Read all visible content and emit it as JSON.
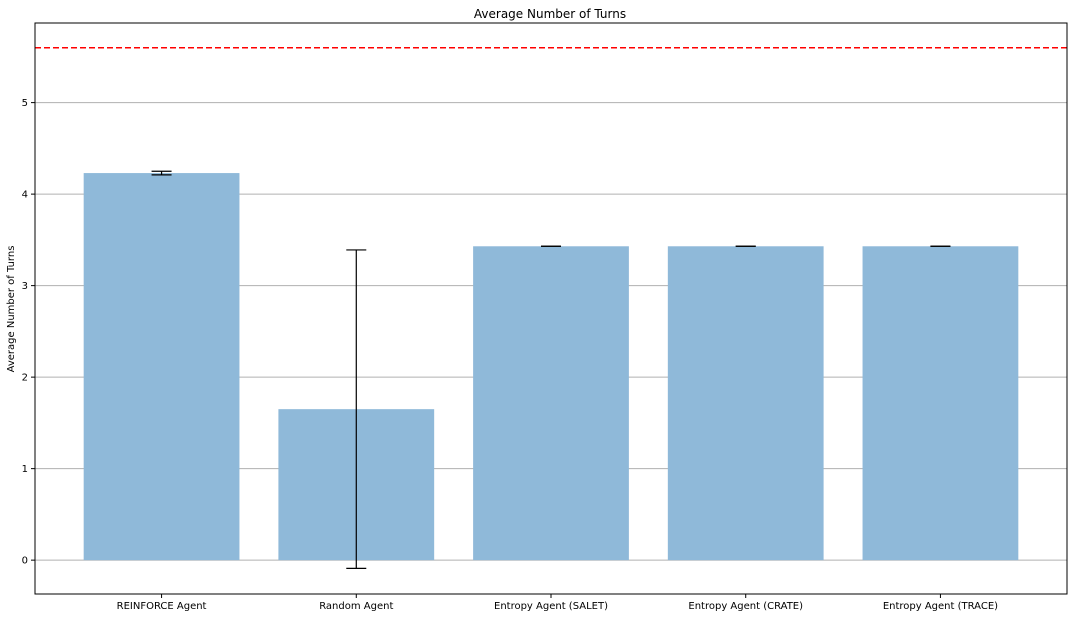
{
  "chart_data": {
    "type": "bar",
    "title": "Average Number of Turns",
    "xlabel": "",
    "ylabel": "Average Number of Turns",
    "categories": [
      "REINFORCE Agent",
      "Random Agent",
      "Entropy Agent (SALET)",
      "Entropy Agent (CRATE)",
      "Entropy Agent (TRACE)"
    ],
    "values": [
      4.23,
      1.65,
      3.43,
      3.43,
      3.43
    ],
    "errors": [
      0.02,
      1.74,
      0.0,
      0.0,
      0.0
    ],
    "yticks": [
      "0",
      "1",
      "2",
      "3",
      "4",
      "5"
    ],
    "ylim": [
      -0.37,
      5.87
    ],
    "reference_line": {
      "y": 5.6,
      "color": "#ff0000",
      "style": "dashed"
    },
    "grid": "horizontal",
    "bar_color": "#8fb9d9",
    "error_color": "#000000"
  }
}
